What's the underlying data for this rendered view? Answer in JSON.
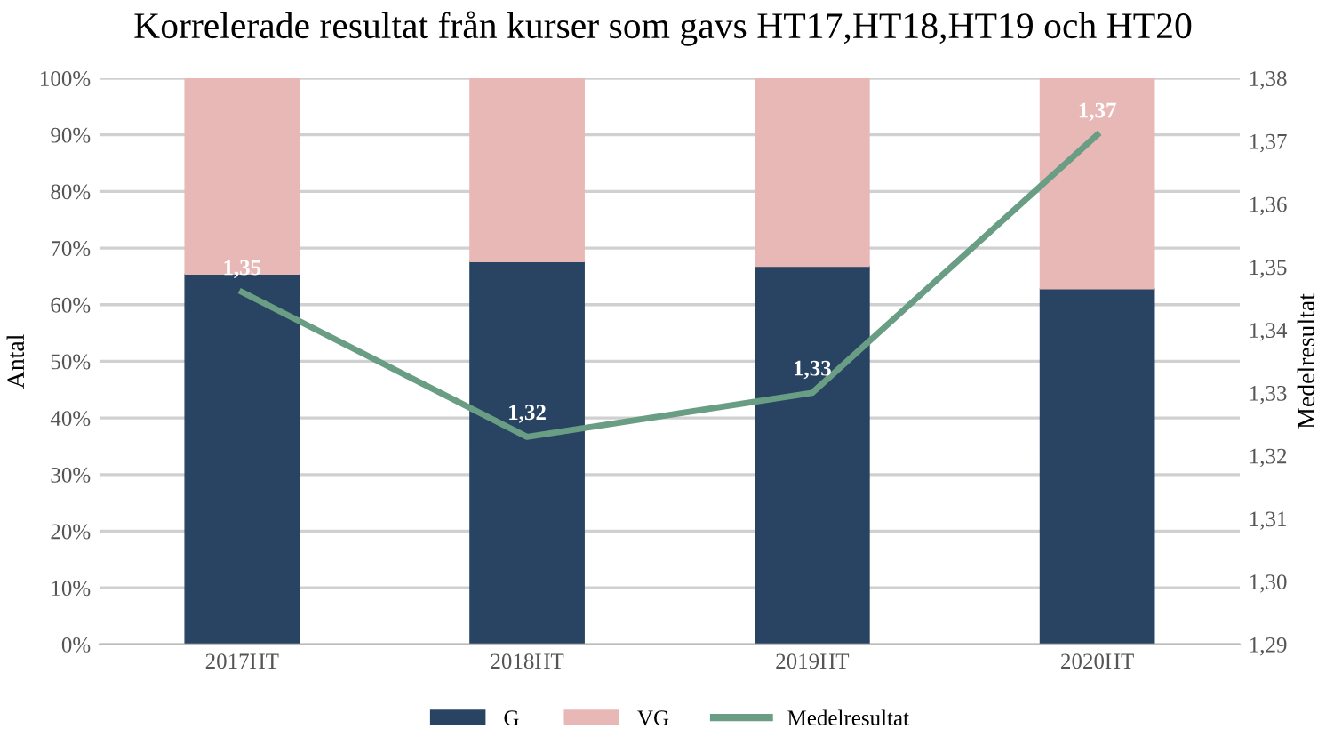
{
  "chart_data": {
    "type": "bar",
    "title": "Korrelerade resultat från kurser som gavs HT17,HT18,HT19 och HT20",
    "ylabel": "Antal",
    "y2label": "Medelresultat",
    "categories": [
      "2017HT",
      "2018HT",
      "2019HT",
      "2020HT"
    ],
    "stacked": true,
    "series": [
      {
        "name": "G",
        "color": "#284462",
        "values": [
          65.4,
          67.6,
          66.8,
          62.8
        ]
      },
      {
        "name": "VG",
        "color": "#e8b8b6",
        "values": [
          34.6,
          32.4,
          33.2,
          37.2
        ]
      },
      {
        "name": "Medelresultat",
        "type": "line",
        "axis": "y2",
        "color": "#6a9e84",
        "values": [
          1.346,
          1.323,
          1.33,
          1.371
        ],
        "value_labels": [
          "1,35",
          "1,32",
          "1,33",
          "1,37"
        ]
      }
    ],
    "ylim": [
      0,
      100
    ],
    "yticks": [
      {
        "value": 0,
        "label": "0%"
      },
      {
        "value": 10,
        "label": "10%"
      },
      {
        "value": 20,
        "label": "20%"
      },
      {
        "value": 30,
        "label": "30%"
      },
      {
        "value": 40,
        "label": "40%"
      },
      {
        "value": 50,
        "label": "50%"
      },
      {
        "value": 60,
        "label": "60%"
      },
      {
        "value": 70,
        "label": "70%"
      },
      {
        "value": 80,
        "label": "80%"
      },
      {
        "value": 90,
        "label": "90%"
      },
      {
        "value": 100,
        "label": "100%"
      }
    ],
    "y2lim": [
      1.29,
      1.38
    ],
    "y2ticks": [
      {
        "value": 1.29,
        "label": "1,29"
      },
      {
        "value": 1.3,
        "label": "1,30"
      },
      {
        "value": 1.31,
        "label": "1,31"
      },
      {
        "value": 1.32,
        "label": "1,32"
      },
      {
        "value": 1.33,
        "label": "1,33"
      },
      {
        "value": 1.34,
        "label": "1,34"
      },
      {
        "value": 1.35,
        "label": "1,35"
      },
      {
        "value": 1.36,
        "label": "1,36"
      },
      {
        "value": 1.37,
        "label": "1,37"
      },
      {
        "value": 1.38,
        "label": "1,38"
      }
    ],
    "grid": "y",
    "legend": "bottom"
  }
}
